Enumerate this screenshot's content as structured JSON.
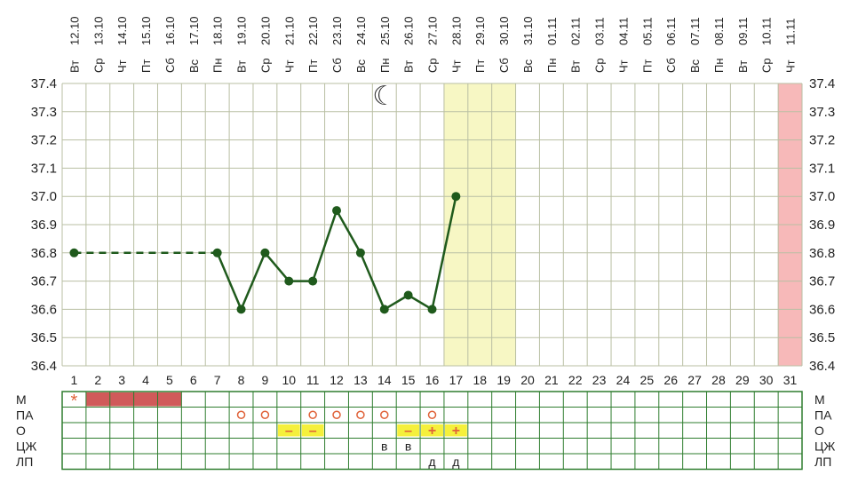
{
  "colors": {
    "grid": "#b9bfa3",
    "line": "#1f5a1c",
    "highlight": "#f7f7c4",
    "pink": "#f7b9b9",
    "period": "#d05a5a",
    "tableBorder": "#2e7d2e",
    "yellowCell": "#f5f03c",
    "mark": "#e0633a"
  },
  "chart_data": {
    "type": "line",
    "x": [
      1,
      2,
      3,
      4,
      5,
      6,
      7,
      8,
      9,
      10,
      11,
      12,
      13,
      14,
      15,
      16,
      17,
      18,
      19,
      20,
      21,
      22,
      23,
      24,
      25,
      26,
      27,
      28,
      29,
      30,
      31
    ],
    "x_tick_labels": [
      "1",
      "2",
      "3",
      "4",
      "5",
      "6",
      "7",
      "8",
      "9",
      "10",
      "11",
      "12",
      "13",
      "14",
      "15",
      "16",
      "17",
      "18",
      "19",
      "20",
      "21",
      "22",
      "23",
      "24",
      "25",
      "26",
      "27",
      "28",
      "29",
      "30",
      "31"
    ],
    "dates": [
      "12.10",
      "13.10",
      "14.10",
      "15.10",
      "16.10",
      "17.10",
      "18.10",
      "19.10",
      "20.10",
      "21.10",
      "22.10",
      "23.10",
      "24.10",
      "25.10",
      "26.10",
      "27.10",
      "28.10",
      "29.10",
      "30.10",
      "31.10",
      "01.11",
      "02.11",
      "03.11",
      "04.11",
      "05.11",
      "06.11",
      "07.11",
      "08.11",
      "09.11",
      "10.11",
      "11.11"
    ],
    "weekdays": [
      "Вт",
      "Ср",
      "Чт",
      "Пт",
      "Сб",
      "Вс",
      "Пн",
      "Вт",
      "Ср",
      "Чт",
      "Пт",
      "Сб",
      "Вс",
      "Пн",
      "Вт",
      "Ср",
      "Чт",
      "Пт",
      "Сб",
      "Вс",
      "Пн",
      "Вт",
      "Ср",
      "Чт",
      "Пт",
      "Сб",
      "Вс",
      "Пн",
      "Вт",
      "Ср",
      "Чт"
    ],
    "y_ticks": [
      "36.4",
      "36.5",
      "36.6",
      "36.7",
      "36.8",
      "36.9",
      "37.0",
      "37.1",
      "37.2",
      "37.3",
      "37.4"
    ],
    "ylim": [
      36.4,
      37.4
    ],
    "series": [
      {
        "points": [
          {
            "x": 1,
            "y": 36.8
          },
          {
            "x": 7,
            "y": 36.8
          },
          {
            "x": 8,
            "y": 36.6
          },
          {
            "x": 9,
            "y": 36.8
          },
          {
            "x": 10,
            "y": 36.7
          },
          {
            "x": 11,
            "y": 36.7
          },
          {
            "x": 12,
            "y": 36.95
          },
          {
            "x": 13,
            "y": 36.8
          },
          {
            "x": 14,
            "y": 36.6
          },
          {
            "x": 15,
            "y": 36.65
          },
          {
            "x": 16,
            "y": 36.6
          },
          {
            "x": 17,
            "y": 37.0
          }
        ],
        "dashed_segments": [
          [
            1,
            7
          ]
        ]
      }
    ],
    "highlighted_days": [
      17,
      18,
      19
    ],
    "pink_days": [
      31
    ],
    "moon_day": 14,
    "grid": true,
    "rows": {
      "labels": [
        "М",
        "ПА",
        "О",
        "ЦЖ",
        "ЛП"
      ],
      "M": {
        "star_day": 1,
        "star_symbol": "*",
        "bar_days": [
          2,
          5
        ]
      },
      "PA": {
        "symbol": "o",
        "days": [
          8,
          9,
          11,
          12,
          13,
          14,
          16
        ]
      },
      "O": [
        {
          "day": 10,
          "symbol": "–"
        },
        {
          "day": 11,
          "symbol": "–"
        },
        {
          "day": 15,
          "symbol": "–"
        },
        {
          "day": 16,
          "symbol": "+"
        },
        {
          "day": 17,
          "symbol": "+"
        }
      ],
      "CZh": [
        {
          "day": 14,
          "symbol": "в"
        },
        {
          "day": 15,
          "symbol": "в"
        }
      ],
      "LP": [
        {
          "day": 16,
          "symbol": "д"
        },
        {
          "day": 17,
          "symbol": "д"
        }
      ]
    }
  }
}
